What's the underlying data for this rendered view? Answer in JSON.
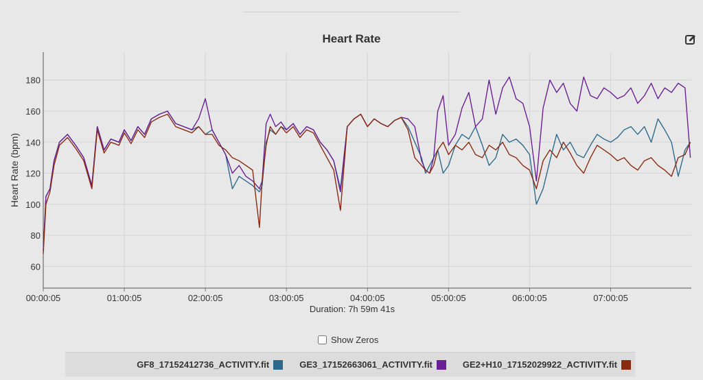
{
  "colors": {
    "gf8": "#2e6a8c",
    "ge3": "#6a2095",
    "ge2": "#8a2a12"
  },
  "icons": {
    "export": "edit-square-icon"
  },
  "controls": {
    "show_zeros_label": "Show Zeros",
    "show_zeros_checked": false
  },
  "chart_data": {
    "type": "line",
    "title": "Heart Rate",
    "xlabel": "Duration: 7h 59m 41s",
    "ylabel": "Heart Rate (bpm)",
    "xlim_min": [
      0,
      479.7
    ],
    "ylim": [
      46,
      198
    ],
    "x_ticks": [
      "00:00:05",
      "01:00:05",
      "02:00:05",
      "03:00:05",
      "04:00:05",
      "05:00:05",
      "06:00:05",
      "07:00:05"
    ],
    "y_ticks": [
      60,
      80,
      100,
      120,
      140,
      160,
      180
    ],
    "grid": true,
    "legend_position": "bottom",
    "series": [
      {
        "name": "GF8_17152412736_ACTIVITY.fit",
        "color_key": "gf8",
        "x": [
          0,
          2,
          5,
          8,
          12,
          18,
          24,
          30,
          36,
          40,
          45,
          50,
          56,
          60,
          65,
          70,
          75,
          80,
          86,
          92,
          98,
          104,
          110,
          115,
          120,
          125,
          130,
          135,
          140,
          145,
          150,
          155,
          160,
          162,
          165,
          168,
          172,
          176,
          180,
          185,
          190,
          195,
          200,
          205,
          210,
          215,
          220,
          225,
          230,
          235,
          240,
          245,
          250,
          255,
          260,
          265,
          270,
          275,
          280,
          283,
          286,
          289,
          292,
          296,
          300,
          305,
          310,
          315,
          320,
          325,
          330,
          335,
          340,
          345,
          350,
          355,
          360,
          365,
          370,
          375,
          380,
          385,
          390,
          395,
          400,
          405,
          410,
          415,
          420,
          425,
          430,
          435,
          440,
          445,
          450,
          455,
          460,
          465,
          470,
          475,
          479
        ],
        "y": [
          70,
          105,
          110,
          128,
          140,
          145,
          138,
          130,
          112,
          150,
          135,
          142,
          140,
          148,
          141,
          150,
          145,
          155,
          158,
          160,
          152,
          150,
          148,
          150,
          145,
          148,
          140,
          132,
          110,
          118,
          115,
          112,
          108,
          112,
          140,
          148,
          145,
          150,
          148,
          152,
          145,
          150,
          148,
          140,
          135,
          128,
          110,
          150,
          155,
          158,
          150,
          155,
          152,
          150,
          154,
          156,
          150,
          140,
          130,
          120,
          125,
          130,
          135,
          120,
          125,
          138,
          145,
          142,
          150,
          138,
          125,
          130,
          145,
          140,
          142,
          138,
          132,
          100,
          110,
          128,
          145,
          135,
          140,
          132,
          130,
          138,
          145,
          142,
          140,
          143,
          148,
          150,
          145,
          150,
          140,
          155,
          148,
          140,
          118,
          135,
          140
        ]
      },
      {
        "name": "GE3_17152663061_ACTIVITY.fit",
        "color_key": "ge3",
        "x": [
          0,
          2,
          5,
          8,
          12,
          18,
          24,
          30,
          36,
          40,
          45,
          50,
          56,
          60,
          65,
          70,
          75,
          80,
          86,
          92,
          98,
          104,
          110,
          115,
          120,
          125,
          130,
          135,
          140,
          145,
          150,
          155,
          160,
          162,
          165,
          168,
          172,
          176,
          180,
          185,
          190,
          195,
          200,
          205,
          210,
          215,
          220,
          225,
          230,
          235,
          240,
          245,
          250,
          255,
          260,
          265,
          270,
          275,
          280,
          283,
          286,
          289,
          292,
          296,
          300,
          305,
          310,
          315,
          320,
          325,
          330,
          335,
          340,
          345,
          350,
          355,
          360,
          365,
          370,
          375,
          380,
          385,
          390,
          395,
          400,
          405,
          410,
          415,
          420,
          425,
          430,
          435,
          440,
          445,
          450,
          455,
          460,
          465,
          470,
          475,
          479
        ],
        "y": [
          70,
          105,
          110,
          128,
          140,
          145,
          138,
          130,
          112,
          150,
          135,
          142,
          140,
          148,
          141,
          150,
          145,
          155,
          158,
          160,
          152,
          150,
          148,
          155,
          168,
          148,
          140,
          132,
          120,
          125,
          118,
          115,
          110,
          115,
          152,
          158,
          150,
          153,
          148,
          152,
          145,
          150,
          148,
          140,
          135,
          128,
          108,
          150,
          155,
          158,
          150,
          155,
          152,
          150,
          154,
          156,
          155,
          150,
          128,
          122,
          120,
          130,
          160,
          170,
          138,
          145,
          162,
          172,
          150,
          155,
          180,
          158,
          175,
          182,
          168,
          165,
          150,
          115,
          162,
          180,
          172,
          178,
          165,
          160,
          182,
          170,
          168,
          175,
          172,
          168,
          170,
          175,
          165,
          170,
          178,
          168,
          175,
          172,
          178,
          175,
          130
        ]
      },
      {
        "name": "GE2+H10_17152029922_ACTIVITY.fit",
        "color_key": "ge2",
        "x": [
          0,
          2,
          5,
          8,
          12,
          18,
          24,
          30,
          36,
          40,
          45,
          50,
          56,
          60,
          65,
          70,
          75,
          80,
          86,
          92,
          98,
          104,
          110,
          115,
          120,
          125,
          130,
          135,
          140,
          145,
          150,
          155,
          160,
          162,
          165,
          168,
          172,
          176,
          180,
          185,
          190,
          195,
          200,
          205,
          210,
          215,
          220,
          225,
          230,
          235,
          240,
          245,
          250,
          255,
          260,
          265,
          270,
          275,
          280,
          283,
          286,
          289,
          292,
          296,
          300,
          305,
          310,
          315,
          320,
          325,
          330,
          335,
          340,
          345,
          350,
          355,
          360,
          365,
          370,
          375,
          380,
          385,
          390,
          395,
          400,
          405,
          410,
          415,
          420,
          425,
          430,
          435,
          440,
          445,
          450,
          455,
          460,
          465,
          470,
          475,
          479
        ],
        "y": [
          68,
          100,
          108,
          125,
          138,
          143,
          136,
          128,
          110,
          148,
          133,
          140,
          138,
          146,
          139,
          148,
          143,
          153,
          156,
          158,
          150,
          148,
          146,
          150,
          145,
          145,
          138,
          135,
          130,
          128,
          125,
          122,
          85,
          115,
          138,
          150,
          145,
          150,
          146,
          150,
          143,
          148,
          146,
          138,
          130,
          122,
          96,
          150,
          155,
          158,
          150,
          155,
          152,
          150,
          154,
          156,
          148,
          130,
          125,
          122,
          120,
          125,
          135,
          140,
          132,
          138,
          135,
          140,
          132,
          130,
          138,
          135,
          140,
          132,
          130,
          125,
          122,
          110,
          128,
          135,
          130,
          140,
          133,
          125,
          120,
          130,
          138,
          135,
          132,
          128,
          130,
          125,
          122,
          128,
          130,
          125,
          122,
          118,
          130,
          132,
          140
        ]
      }
    ]
  }
}
